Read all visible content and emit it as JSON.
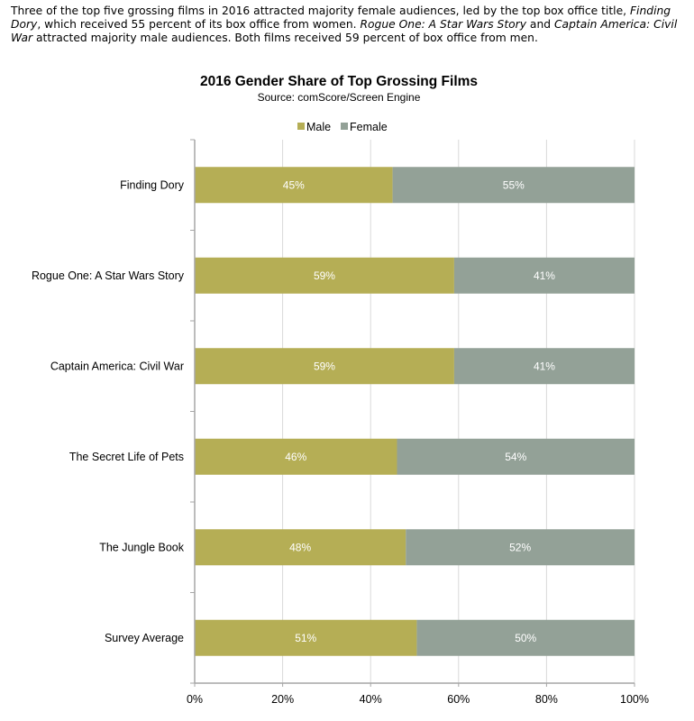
{
  "intro": {
    "p1": "Three of the top five grossing films in 2016 attracted majority female audiences, led by the top box office title, ",
    "i1": "Finding Dory",
    "p2": ", which received 55 percent of its box office from women. ",
    "i2": "Rogue One: A Star Wars Story",
    "p3": " and ",
    "i3": "Captain America: Civil War",
    "p4": " attracted majority male audiences. Both films received 59 percent of box office from men."
  },
  "colors": {
    "male": "#b5ae55",
    "female": "#93a197",
    "grid": "#d9d9d9",
    "axis": "#a6a6a6"
  },
  "chart_data": {
    "type": "bar",
    "orientation": "horizontal",
    "stacked": "100%",
    "title": "2016 Gender Share of Top Grossing Films",
    "subtitle": "Source: comScore/Screen Engine",
    "legend": {
      "position": "top",
      "entries": [
        "Male",
        "Female"
      ]
    },
    "categories": [
      "Finding Dory",
      "Rogue One: A Star Wars Story",
      "Captain America: Civil War",
      "The Secret Life of Pets",
      "The Jungle Book",
      "Survey Average"
    ],
    "series": [
      {
        "name": "Male",
        "values": [
          45,
          59,
          59,
          46,
          48,
          51
        ],
        "labels": [
          "45%",
          "59%",
          "59%",
          "46%",
          "48%",
          "51%"
        ]
      },
      {
        "name": "Female",
        "values": [
          55,
          41,
          41,
          54,
          52,
          50
        ],
        "labels": [
          "55%",
          "41%",
          "41%",
          "54%",
          "52%",
          "50%"
        ]
      }
    ],
    "xlim": [
      0,
      100
    ],
    "xticks": [
      "0%",
      "20%",
      "40%",
      "60%",
      "80%",
      "100%"
    ],
    "grid": true
  }
}
